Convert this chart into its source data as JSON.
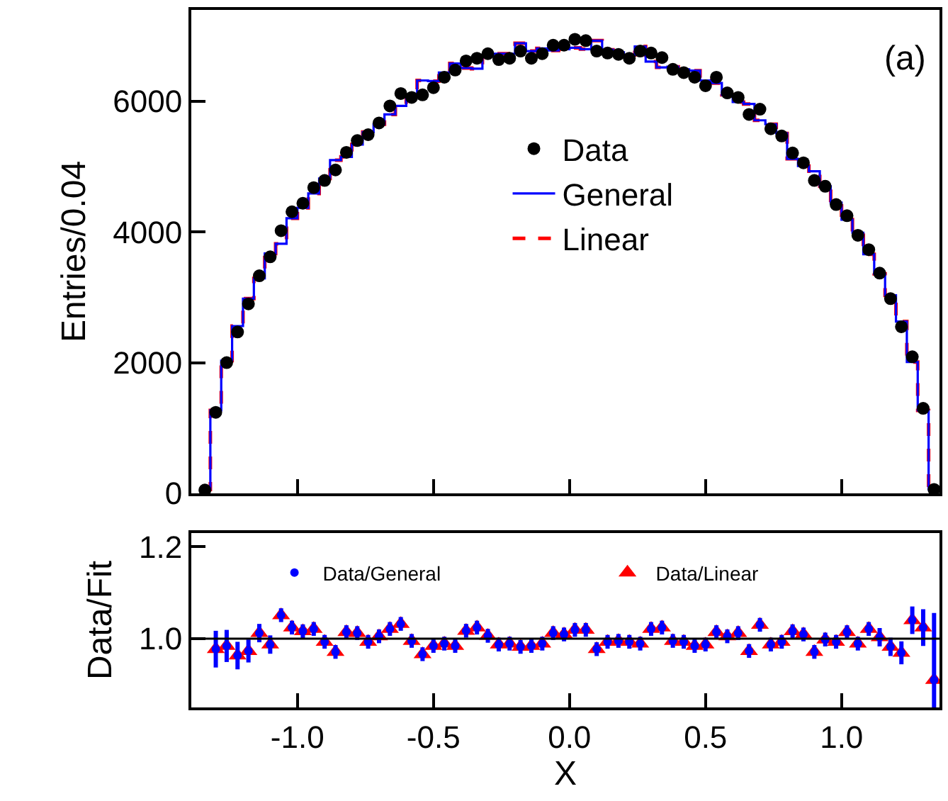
{
  "chart_data": [
    {
      "type": "scatter",
      "ylabel": "Entries/0.04",
      "annotations": [
        "(a)"
      ],
      "xlim": [
        -1.39,
        1.36
      ],
      "ylim": [
        0,
        7400
      ],
      "xticks": [
        {
          "value": -1.0,
          "label": null
        },
        {
          "value": -0.5,
          "label": null
        },
        {
          "value": 0.0,
          "label": null
        },
        {
          "value": 0.5,
          "label": null
        },
        {
          "value": 1.0,
          "label": null
        }
      ],
      "yticks": [
        0,
        2000,
        4000,
        6000
      ],
      "tick_labels": "y",
      "legend": "center",
      "x": [
        -1.34,
        -1.3,
        -1.26,
        -1.22,
        -1.18,
        -1.14,
        -1.1,
        -1.06,
        -1.02,
        -0.98,
        -0.94,
        -0.9,
        -0.86,
        -0.82,
        -0.78,
        -0.74,
        -0.7,
        -0.66,
        -0.62,
        -0.58,
        -0.54,
        -0.5,
        -0.46,
        -0.42,
        -0.38,
        -0.34,
        -0.3,
        -0.26,
        -0.22,
        -0.18,
        -0.14,
        -0.1,
        -0.06,
        -0.02,
        0.02,
        0.06,
        0.1,
        0.14,
        0.18,
        0.22,
        0.26,
        0.3,
        0.34,
        0.38,
        0.42,
        0.46,
        0.5,
        0.54,
        0.58,
        0.62,
        0.66,
        0.7,
        0.74,
        0.78,
        0.82,
        0.86,
        0.9,
        0.94,
        0.98,
        1.02,
        1.06,
        1.1,
        1.14,
        1.18,
        1.22,
        1.26,
        1.3,
        1.34
      ],
      "series": [
        {
          "name": "Linear",
          "type": "step",
          "color": "#ff0000",
          "line_style": "dashed",
          "values": [
            60,
            1270,
            2030,
            2560,
            2980,
            3290,
            3670,
            3820,
            4210,
            4370,
            4590,
            4820,
            5100,
            5150,
            5340,
            5530,
            5650,
            5800,
            5930,
            6090,
            6320,
            6310,
            6440,
            6580,
            6510,
            6500,
            6690,
            6730,
            6730,
            6890,
            6770,
            6810,
            6780,
            6800,
            6820,
            6800,
            6930,
            6790,
            6750,
            6710,
            6840,
            6610,
            6520,
            6530,
            6490,
            6470,
            6320,
            6280,
            6100,
            5990,
            5960,
            5710,
            5650,
            5510,
            5120,
            5010,
            4930,
            4700,
            4450,
            4190,
            3990,
            3660,
            3360,
            3030,
            2630,
            2010,
            1270,
            60
          ]
        },
        {
          "name": "General",
          "type": "step",
          "color": "#0000ff",
          "line_style": "solid",
          "values": [
            60,
            1270,
            2030,
            2560,
            2980,
            3290,
            3670,
            3820,
            4210,
            4370,
            4590,
            4820,
            5100,
            5150,
            5340,
            5530,
            5650,
            5800,
            5930,
            6090,
            6320,
            6310,
            6440,
            6580,
            6510,
            6500,
            6690,
            6730,
            6730,
            6890,
            6770,
            6810,
            6780,
            6800,
            6820,
            6800,
            6930,
            6790,
            6750,
            6710,
            6840,
            6610,
            6520,
            6530,
            6490,
            6470,
            6320,
            6280,
            6100,
            5990,
            5960,
            5710,
            5650,
            5510,
            5120,
            5010,
            4930,
            4700,
            4450,
            4190,
            3990,
            3660,
            3360,
            3030,
            2630,
            2010,
            1270,
            60
          ]
        },
        {
          "name": "Data",
          "marker": "circle",
          "color": "#000000",
          "values": [
            50,
            1240,
            2000,
            2470,
            2900,
            3330,
            3620,
            4020,
            4310,
            4440,
            4680,
            4790,
            4950,
            5220,
            5400,
            5490,
            5670,
            5930,
            6120,
            6060,
            6100,
            6210,
            6370,
            6480,
            6620,
            6660,
            6730,
            6640,
            6660,
            6770,
            6660,
            6730,
            6860,
            6860,
            6950,
            6930,
            6770,
            6740,
            6720,
            6660,
            6770,
            6740,
            6670,
            6490,
            6440,
            6370,
            6240,
            6370,
            6130,
            6060,
            5800,
            5880,
            5580,
            5470,
            5210,
            5060,
            4790,
            4700,
            4420,
            4250,
            3950,
            3730,
            3370,
            2980,
            2550,
            2090,
            1300,
            60
          ]
        }
      ]
    },
    {
      "type": "scatter",
      "xlabel": "X",
      "ylabel": "Data/Fit",
      "xlim": [
        -1.39,
        1.36
      ],
      "ylim": [
        0.85,
        1.23
      ],
      "xticks": [
        {
          "value": -1.0,
          "label": "-1.0"
        },
        {
          "value": -0.5,
          "label": "-0.5"
        },
        {
          "value": 0.0,
          "label": "0.0"
        },
        {
          "value": 0.5,
          "label": "0.5"
        },
        {
          "value": 1.0,
          "label": "1.0"
        }
      ],
      "yticks": [
        {
          "value": 1.0,
          "label": "1.0"
        },
        {
          "value": 1.2,
          "label": "1.2"
        }
      ],
      "legend": "top",
      "ref_lines": [
        {
          "axis": "y",
          "value": 1.0,
          "color": "#000000"
        }
      ],
      "x": [
        -1.3,
        -1.26,
        -1.22,
        -1.18,
        -1.14,
        -1.1,
        -1.06,
        -1.02,
        -0.98,
        -0.94,
        -0.9,
        -0.86,
        -0.82,
        -0.78,
        -0.74,
        -0.7,
        -0.66,
        -0.62,
        -0.58,
        -0.54,
        -0.5,
        -0.46,
        -0.42,
        -0.38,
        -0.34,
        -0.3,
        -0.26,
        -0.22,
        -0.18,
        -0.14,
        -0.1,
        -0.06,
        -0.02,
        0.02,
        0.06,
        0.1,
        0.14,
        0.18,
        0.22,
        0.26,
        0.3,
        0.34,
        0.38,
        0.42,
        0.46,
        0.5,
        0.54,
        0.58,
        0.62,
        0.66,
        0.7,
        0.74,
        0.78,
        0.82,
        0.86,
        0.9,
        0.94,
        0.98,
        1.02,
        1.06,
        1.1,
        1.14,
        1.18,
        1.22,
        1.26,
        1.3,
        1.34
      ],
      "series": [
        {
          "name": "Data/Linear",
          "marker": "triangle",
          "color": "#ff0000",
          "values": [
            0.977,
            0.984,
            0.963,
            0.973,
            1.012,
            0.987,
            1.051,
            1.024,
            1.016,
            1.021,
            0.993,
            0.971,
            1.014,
            1.012,
            0.993,
            1.005,
            1.021,
            1.032,
            0.995,
            0.966,
            0.984,
            0.989,
            0.984,
            1.017,
            1.024,
            1.006,
            0.987,
            0.989,
            0.982,
            0.984,
            0.989,
            1.012,
            1.009,
            1.019,
            1.019,
            0.977,
            0.993,
            0.995,
            0.993,
            0.989,
            1.021,
            1.024,
            0.995,
            0.993,
            0.984,
            0.987,
            1.014,
            1.005,
            1.012,
            0.973,
            1.03,
            0.987,
            0.993,
            1.016,
            1.009,
            0.971,
            0.998,
            0.993,
            1.014,
            0.989,
            1.021,
            1.003,
            0.982,
            0.969,
            1.04,
            1.024,
            0.91
          ]
        },
        {
          "name": "Data/General",
          "marker": "circle",
          "color": "#0000ff",
          "values": [
            0.977,
            0.984,
            0.963,
            0.973,
            1.012,
            0.987,
            1.051,
            1.024,
            1.016,
            1.021,
            0.993,
            0.971,
            1.014,
            1.012,
            0.993,
            1.005,
            1.021,
            1.032,
            0.995,
            0.966,
            0.984,
            0.989,
            0.984,
            1.017,
            1.024,
            1.006,
            0.987,
            0.989,
            0.982,
            0.984,
            0.989,
            1.012,
            1.009,
            1.019,
            1.019,
            0.977,
            0.993,
            0.995,
            0.993,
            0.989,
            1.021,
            1.024,
            0.995,
            0.993,
            0.984,
            0.987,
            1.014,
            1.005,
            1.012,
            0.973,
            1.03,
            0.987,
            0.993,
            1.016,
            1.009,
            0.971,
            0.998,
            0.993,
            1.014,
            0.989,
            1.021,
            1.003,
            0.982,
            0.969,
            1.04,
            1.024,
            0.91
          ],
          "errors": [
            0.04,
            0.035,
            0.03,
            0.025,
            0.02,
            0.02,
            0.015,
            0.015,
            0.015,
            0.015,
            0.015,
            0.015,
            0.015,
            0.015,
            0.015,
            0.015,
            0.015,
            0.015,
            0.015,
            0.015,
            0.015,
            0.015,
            0.015,
            0.015,
            0.015,
            0.015,
            0.015,
            0.015,
            0.015,
            0.015,
            0.015,
            0.015,
            0.015,
            0.015,
            0.015,
            0.015,
            0.015,
            0.015,
            0.015,
            0.015,
            0.015,
            0.015,
            0.015,
            0.015,
            0.015,
            0.015,
            0.015,
            0.015,
            0.015,
            0.015,
            0.015,
            0.015,
            0.015,
            0.015,
            0.015,
            0.015,
            0.015,
            0.015,
            0.015,
            0.015,
            0.015,
            0.02,
            0.02,
            0.025,
            0.03,
            0.04,
            [
              0.85,
              1.056
            ]
          ]
        }
      ]
    }
  ]
}
